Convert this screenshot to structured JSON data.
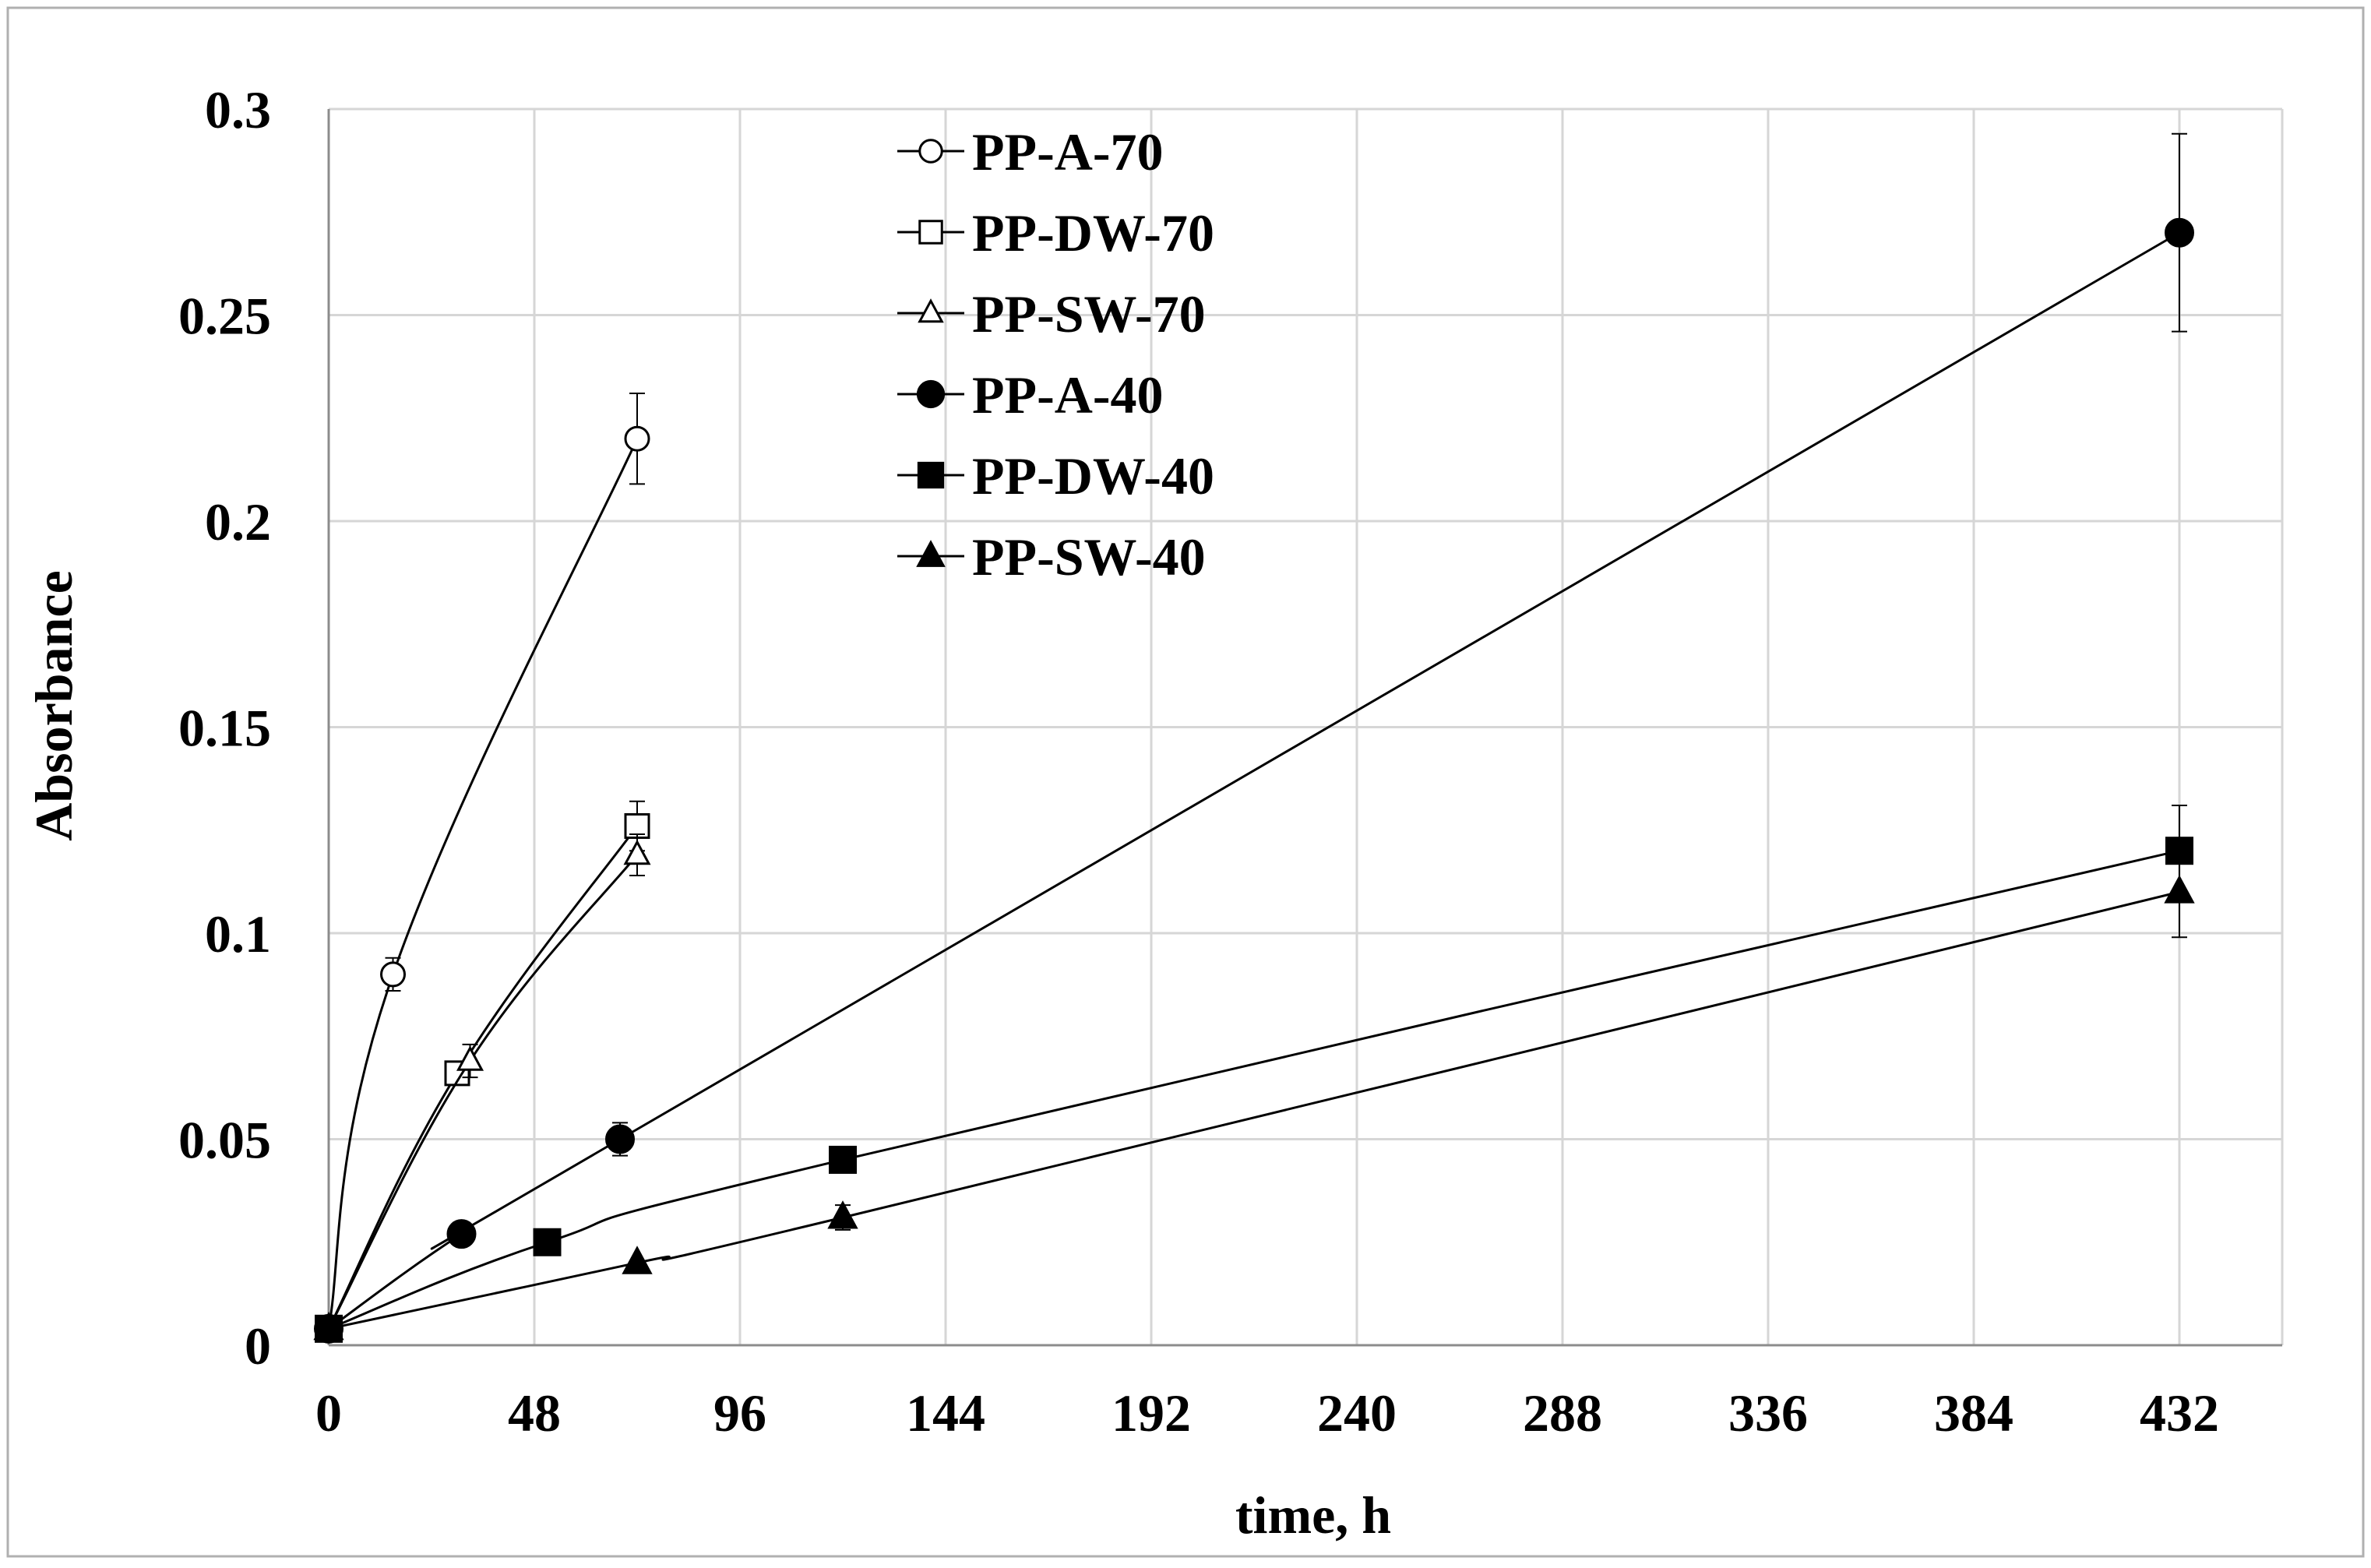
{
  "chart_data": {
    "type": "line",
    "title": "",
    "xlabel": "time, h",
    "ylabel": "Absorbance",
    "xlim": [
      0,
      456
    ],
    "ylim": [
      0,
      0.3
    ],
    "x_ticks": [
      0,
      48,
      96,
      144,
      192,
      240,
      288,
      336,
      384,
      432
    ],
    "x_tick_labels": [
      "0",
      "48",
      "96",
      "144",
      "192",
      "240",
      "288",
      "336",
      "384",
      "432"
    ],
    "y_ticks": [
      0,
      0.05,
      0.1,
      0.15,
      0.2,
      0.25,
      0.3
    ],
    "y_tick_labels": [
      "0",
      "0.05",
      "0.1",
      "0.15",
      "0.2",
      "0.25",
      "0.3"
    ],
    "grid": true,
    "legend_position": "top-center",
    "series": [
      {
        "name": "PP-A-70",
        "marker": "circle",
        "filled": false,
        "x": [
          0,
          15,
          72
        ],
        "y": [
          0.004,
          0.09,
          0.22
        ],
        "err": [
          0,
          0.004,
          0.011
        ]
      },
      {
        "name": "PP-DW-70",
        "marker": "square",
        "filled": false,
        "x": [
          0,
          30,
          72
        ],
        "y": [
          0.004,
          0.066,
          0.126
        ],
        "err": [
          0,
          0,
          0.006
        ]
      },
      {
        "name": "PP-SW-70",
        "marker": "triangle",
        "filled": false,
        "x": [
          0,
          33,
          72
        ],
        "y": [
          0.004,
          0.069,
          0.119
        ],
        "err": [
          0,
          0.004,
          0.005
        ]
      },
      {
        "name": "PP-A-40",
        "marker": "circle",
        "filled": true,
        "x": [
          0,
          31,
          68,
          432
        ],
        "y": [
          0.004,
          0.027,
          0.05,
          0.27
        ],
        "err": [
          0,
          0,
          0.004,
          0.024
        ]
      },
      {
        "name": "PP-DW-40",
        "marker": "square",
        "filled": true,
        "x": [
          0,
          51,
          120,
          432
        ],
        "y": [
          0.004,
          0.025,
          0.045,
          0.12
        ],
        "err": [
          0,
          0,
          0,
          0.011
        ]
      },
      {
        "name": "PP-SW-40",
        "marker": "triangle",
        "filled": true,
        "x": [
          0,
          72,
          120,
          432
        ],
        "y": [
          0.004,
          0.02,
          0.031,
          0.11
        ],
        "err": [
          0,
          0,
          0.003,
          0.011
        ]
      }
    ]
  }
}
